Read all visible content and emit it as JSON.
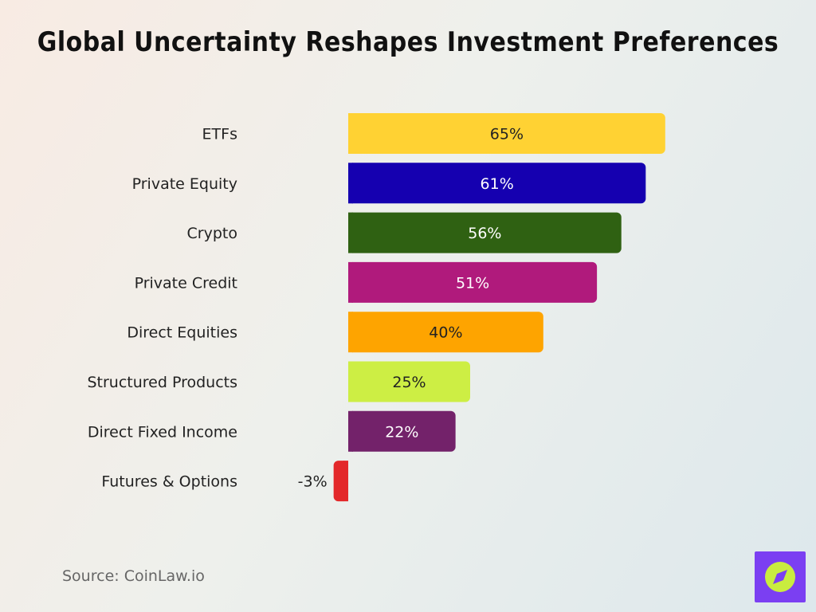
{
  "title": "Global Uncertainty Reshapes Investment Preferences",
  "source": "Source: CoinLaw.io",
  "logo_icon": "compass-icon",
  "chart_data": {
    "type": "bar",
    "orientation": "horizontal",
    "categories": [
      "ETFs",
      "Private Equity",
      "Crypto",
      "Private Credit",
      "Direct Equities",
      "Structured Products",
      "Direct Fixed Income",
      "Futures & Options"
    ],
    "values": [
      65,
      61,
      56,
      51,
      40,
      25,
      22,
      -3
    ],
    "labels": [
      "65%",
      "61%",
      "56%",
      "51%",
      "40%",
      "25%",
      "22%",
      "-3%"
    ],
    "colors": [
      "#ffd233",
      "#1500b0",
      "#2f6112",
      "#b01a7c",
      "#fea400",
      "#cdee44",
      "#73226a",
      "#e3282a"
    ],
    "label_colors": [
      "#222222",
      "#ffffff",
      "#ffffff",
      "#ffffff",
      "#222222",
      "#222222",
      "#ffffff",
      "#222222"
    ],
    "unit": "%",
    "grid": false,
    "legend": "none"
  }
}
